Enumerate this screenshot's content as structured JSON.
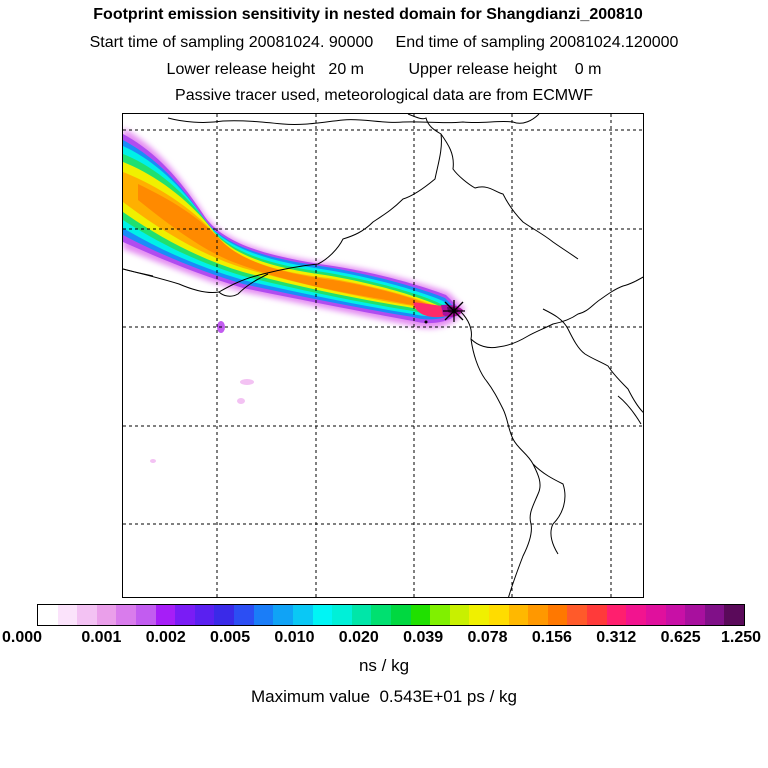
{
  "header": {
    "title": "Footprint emission sensitivity in nested domain for Shangdianzi_200810",
    "line2": "Start time of sampling 20081024. 90000     End time of sampling 20081024.120000",
    "line3": "Lower release height   20 m          Upper release height    0 m",
    "line4": "Passive tracer used, meteorological data are from ECMWF"
  },
  "legend": {
    "colors": [
      "#ffffff",
      "#fbe3fb",
      "#f3c2f3",
      "#ea9fea",
      "#d97cec",
      "#c25cf0",
      "#a61ef7",
      "#7a1cf5",
      "#5a20f0",
      "#3a2ae8",
      "#2c4ef3",
      "#1a7df8",
      "#10a3f6",
      "#0ac8f5",
      "#00f5f5",
      "#00f0d8",
      "#00e6a8",
      "#00e070",
      "#00d840",
      "#20e000",
      "#80f000",
      "#c8f000",
      "#f0f000",
      "#ffdc00",
      "#ffb800",
      "#ff9800",
      "#ff7800",
      "#ff5a2a",
      "#ff3a3a",
      "#ff1f6e",
      "#f2148f",
      "#e0109d",
      "#c810a6",
      "#a8109e",
      "#801088",
      "#5a0a5a"
    ],
    "tick_labels": [
      "0.000",
      "0.001",
      "0.002",
      "0.005",
      "0.010",
      "0.020",
      "0.039",
      "0.078",
      "0.156",
      "0.312",
      "0.625",
      "1.250"
    ],
    "unit": "ns / kg",
    "max_value_text": "Maximum value  0.543E+01 ps / kg"
  }
}
